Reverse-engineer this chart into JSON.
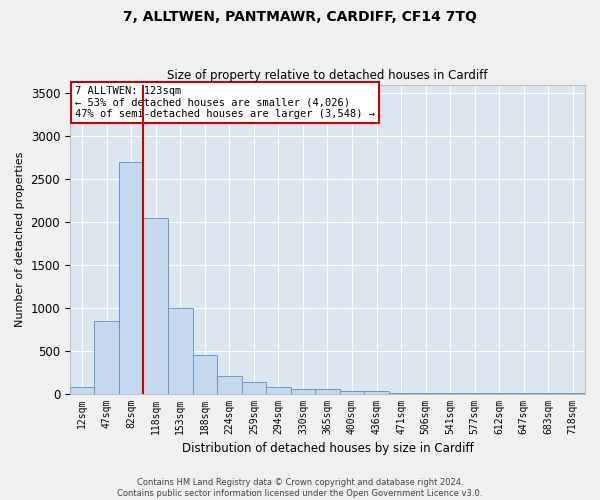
{
  "title": "7, ALLTWEN, PANTMAWR, CARDIFF, CF14 7TQ",
  "subtitle": "Size of property relative to detached houses in Cardiff",
  "xlabel": "Distribution of detached houses by size in Cardiff",
  "ylabel": "Number of detached properties",
  "bar_color": "#c5d8ee",
  "bar_edge_color": "#5a8fc0",
  "bg_color": "#dce6f0",
  "grid_color": "#ffffff",
  "vline_color": "#cc0000",
  "vline_index": 3,
  "annotation_text": "7 ALLTWEN: 123sqm\n← 53% of detached houses are smaller (4,026)\n47% of semi-detached houses are larger (3,548) →",
  "annotation_box_color": "#ffffff",
  "annotation_box_edge": "#cc0000",
  "categories": [
    "12sqm",
    "47sqm",
    "82sqm",
    "118sqm",
    "153sqm",
    "188sqm",
    "224sqm",
    "259sqm",
    "294sqm",
    "330sqm",
    "365sqm",
    "400sqm",
    "436sqm",
    "471sqm",
    "506sqm",
    "541sqm",
    "577sqm",
    "612sqm",
    "647sqm",
    "683sqm",
    "718sqm"
  ],
  "values": [
    75,
    840,
    2700,
    2050,
    1000,
    450,
    200,
    130,
    75,
    50,
    50,
    35,
    25,
    10,
    10,
    5,
    5,
    5,
    5,
    5,
    5
  ],
  "ylim": [
    0,
    3600
  ],
  "yticks": [
    0,
    500,
    1000,
    1500,
    2000,
    2500,
    3000,
    3500
  ],
  "footer_line1": "Contains HM Land Registry data © Crown copyright and database right 2024.",
  "footer_line2": "Contains public sector information licensed under the Open Government Licence v3.0."
}
